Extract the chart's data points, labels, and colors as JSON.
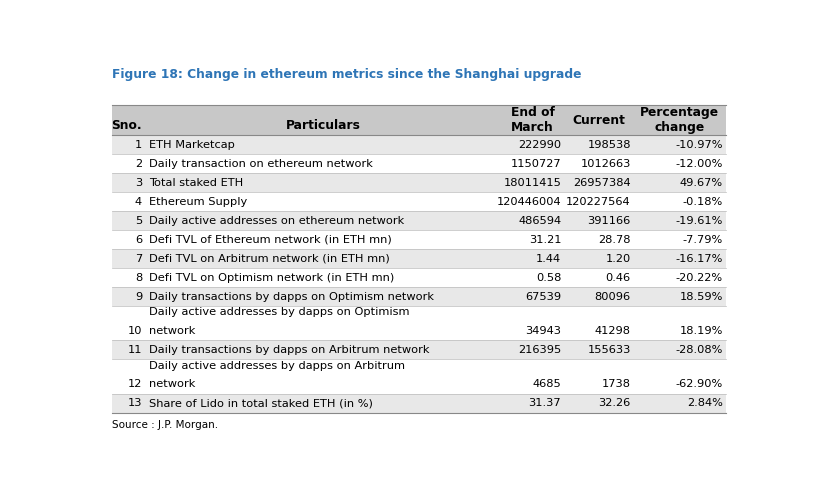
{
  "title": "Figure 18: Change in ethereum metrics since the Shanghai upgrade",
  "source": "Source : J.P. Morgan.",
  "col_headers": [
    [
      "Sno.",
      ""
    ],
    [
      "Particulars",
      ""
    ],
    [
      "End of",
      "March"
    ],
    [
      "Current",
      ""
    ],
    [
      "Percentage",
      "change"
    ]
  ],
  "header_bg": "#c8c8c8",
  "row_bg_odd": "#e8e8e8",
  "row_bg_even": "#ffffff",
  "rows": [
    {
      "sno": "1",
      "particulars": "ETH Marketcap",
      "end_march": "222990",
      "current": "198538",
      "pct": "-10.97%",
      "extra_line": null
    },
    {
      "sno": "2",
      "particulars": "Daily transaction on ethereum network",
      "end_march": "1150727",
      "current": "1012663",
      "pct": "-12.00%",
      "extra_line": null
    },
    {
      "sno": "3",
      "particulars": "Total staked ETH",
      "end_march": "18011415",
      "current": "26957384",
      "pct": "49.67%",
      "extra_line": null
    },
    {
      "sno": "4",
      "particulars": "Ethereum Supply",
      "end_march": "120446004",
      "current": "120227564",
      "pct": "-0.18%",
      "extra_line": null
    },
    {
      "sno": "5",
      "particulars": "Daily active addresses on ethereum network",
      "end_march": "486594",
      "current": "391166",
      "pct": "-19.61%",
      "extra_line": null
    },
    {
      "sno": "6",
      "particulars": "Defi TVL of Ethereum network (in ETH mn)",
      "end_march": "31.21",
      "current": "28.78",
      "pct": "-7.79%",
      "extra_line": null
    },
    {
      "sno": "7",
      "particulars": "Defi TVL on Arbitrum network (in ETH mn)",
      "end_march": "1.44",
      "current": "1.20",
      "pct": "-16.17%",
      "extra_line": null
    },
    {
      "sno": "8",
      "particulars": "Defi TVL on Optimism network (in ETH mn)",
      "end_march": "0.58",
      "current": "0.46",
      "pct": "-20.22%",
      "extra_line": null
    },
    {
      "sno": "9",
      "particulars": "Daily transactions by dapps on Optimism network",
      "end_march": "67539",
      "current": "80096",
      "pct": "18.59%",
      "extra_line": null
    },
    {
      "sno": "10",
      "particulars": "Daily active addresses by dapps on Optimism",
      "end_march": "34943",
      "current": "41298",
      "pct": "18.19%",
      "extra_line": "network"
    },
    {
      "sno": "11",
      "particulars": "Daily transactions by dapps on Arbitrum network",
      "end_march": "216395",
      "current": "155633",
      "pct": "-28.08%",
      "extra_line": null
    },
    {
      "sno": "12",
      "particulars": "Daily active addresses by dapps on Arbitrum",
      "end_march": "4685",
      "current": "1738",
      "pct": "-62.90%",
      "extra_line": "network"
    },
    {
      "sno": "13",
      "particulars": "Share of Lido in total staked ETH (in %)",
      "end_march": "31.37",
      "current": "32.26",
      "pct": "2.84%",
      "extra_line": null
    }
  ],
  "font_size": 8.2,
  "title_font_size": 8.8,
  "header_font_size": 8.8
}
